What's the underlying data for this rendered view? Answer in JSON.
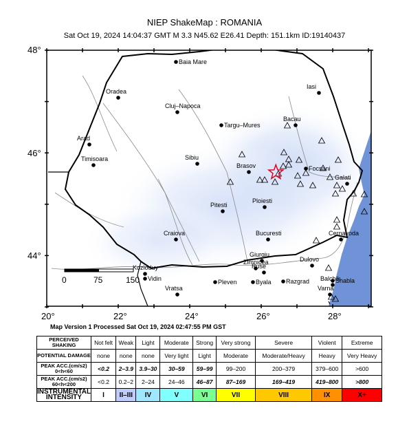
{
  "header": {
    "title": "NIEP ShakeMap : ROMANIA",
    "subtitle": "Sat Oct 19, 2024 14:04:37 GMT   M 3.3   N45.62 E26.41   Depth: 151.1km   ID:19140437"
  },
  "map": {
    "lat_labels": [
      "48°",
      "46°",
      "44°"
    ],
    "lon_labels": [
      "20°",
      "22°",
      "24°",
      "26°",
      "28°"
    ],
    "scale_labels": [
      "0",
      "75",
      "150"
    ],
    "cities": [
      {
        "name": "Baia Mare"
      },
      {
        "name": "Oradea"
      },
      {
        "name": "Cluj–Napoca"
      },
      {
        "name": "Targu–Mures"
      },
      {
        "name": "Iasi"
      },
      {
        "name": "Bacau"
      },
      {
        "name": "Arad"
      },
      {
        "name": "Timisoara"
      },
      {
        "name": "Sibiu"
      },
      {
        "name": "Brasov"
      },
      {
        "name": "Focsani"
      },
      {
        "name": "Galati"
      },
      {
        "name": "Ploiesti"
      },
      {
        "name": "Pitesti"
      },
      {
        "name": "Craiova"
      },
      {
        "name": "Bucuresti"
      },
      {
        "name": "Cernavoda"
      },
      {
        "name": "Giurgiu"
      },
      {
        "name": "Zimnicea"
      },
      {
        "name": "Ruse"
      },
      {
        "name": "Dulovo"
      },
      {
        "name": "Kozloduy"
      },
      {
        "name": "Vidin"
      },
      {
        "name": "Pleven"
      },
      {
        "name": "Byala"
      },
      {
        "name": "Razgrad"
      },
      {
        "name": "Shabla"
      },
      {
        "name": "Balchik"
      },
      {
        "name": "Vratsa"
      },
      {
        "name": "Varna"
      }
    ],
    "epicenter": {
      "lat": 45.62,
      "lon": 26.41
    },
    "colors": {
      "sea": "#6f93d6",
      "shaking": "#cfdcf7",
      "border": "#000000",
      "rivers": "#808080"
    }
  },
  "footer": {
    "version_text": "Map Version 1 Processed Sat Oct 19, 2024 02:47:55 PM GST"
  },
  "legend": {
    "row_labels": {
      "shaking": "PERCEIVED SHAKING",
      "damage": "POTENTIAL DAMAGE",
      "acc1": "PEAK ACC.(cm/s2) 0<h<60",
      "acc2": "PEAK ACC.(cm/s2) 60<h<200",
      "intensity": "INSTRUMENTAL INTENSITY"
    },
    "shaking": [
      "Not felt",
      "Weak",
      "Light",
      "Moderate",
      "Strong",
      "Very strong",
      "Severe",
      "Violent",
      "Extreme"
    ],
    "damage": [
      "none",
      "none",
      "none",
      "Very light",
      "Light",
      "Moderate",
      "Moderate/Heavy",
      "Heavy",
      "Very Heavy"
    ],
    "acc1": [
      "<0.2",
      "2–3.9",
      "3.9–30",
      "30–59",
      "59–99",
      "99–200",
      "200–379",
      "379–600",
      ">600"
    ],
    "acc2": [
      "<0.2",
      "0.2–2",
      "2–24",
      "24–46",
      "46–87",
      "87–169",
      "169–419",
      "419–800",
      ">800"
    ],
    "intensity": [
      "I",
      "II–III",
      "IV",
      "V",
      "VI",
      "VII",
      "VIII",
      "IX",
      "X+"
    ],
    "intensity_colors": [
      "#ffffff",
      "#bfccff",
      "#a0e6ff",
      "#80ffff",
      "#7aff93",
      "#ffff00",
      "#ffc800",
      "#ff9100",
      "#ff0000"
    ]
  }
}
